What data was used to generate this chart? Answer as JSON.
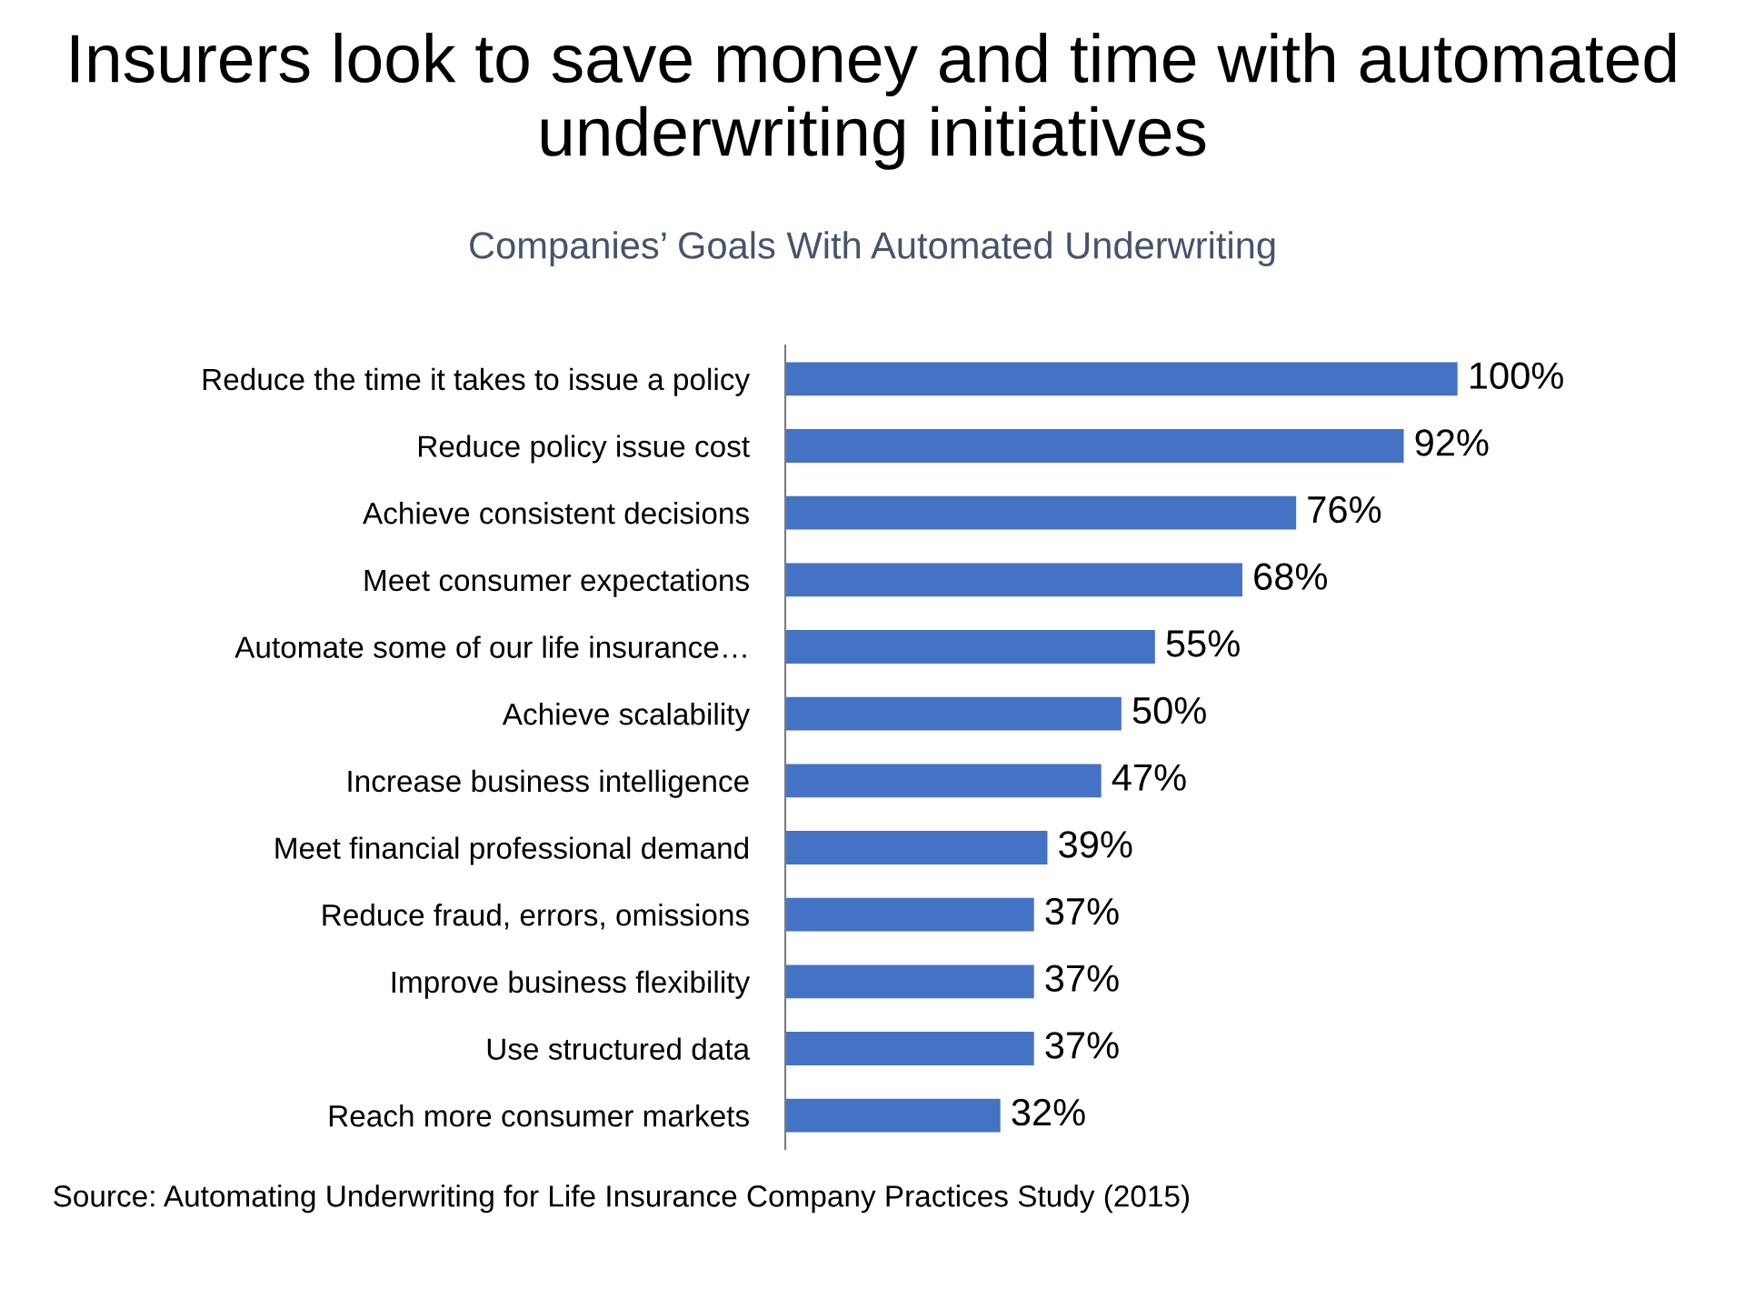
{
  "chart_data": {
    "type": "bar",
    "orientation": "horizontal",
    "title": "Insurers look to save money and time with automated underwriting initiatives",
    "subtitle": "Companies’ Goals With Automated Underwriting",
    "categories": [
      "Reduce the time it takes to issue a policy",
      "Reduce policy issue cost",
      "Achieve consistent decisions",
      "Meet consumer expectations",
      "Automate some of our life insurance…",
      "Achieve scalability",
      "Increase business intelligence",
      "Meet financial professional demand",
      "Reduce fraud, errors, omissions",
      "Improve business flexibility",
      "Use structured data",
      "Reach more consumer markets"
    ],
    "values": [
      100,
      92,
      76,
      68,
      55,
      50,
      47,
      39,
      37,
      37,
      37,
      32
    ],
    "value_labels": [
      "100%",
      "92%",
      "76%",
      "68%",
      "55%",
      "50%",
      "47%",
      "39%",
      "37%",
      "37%",
      "37%",
      "32%"
    ],
    "color": "#4472c4",
    "annotations": [
      "Source: Automating Underwriting for Life Insurance Company Practices Study (2015)"
    ]
  }
}
